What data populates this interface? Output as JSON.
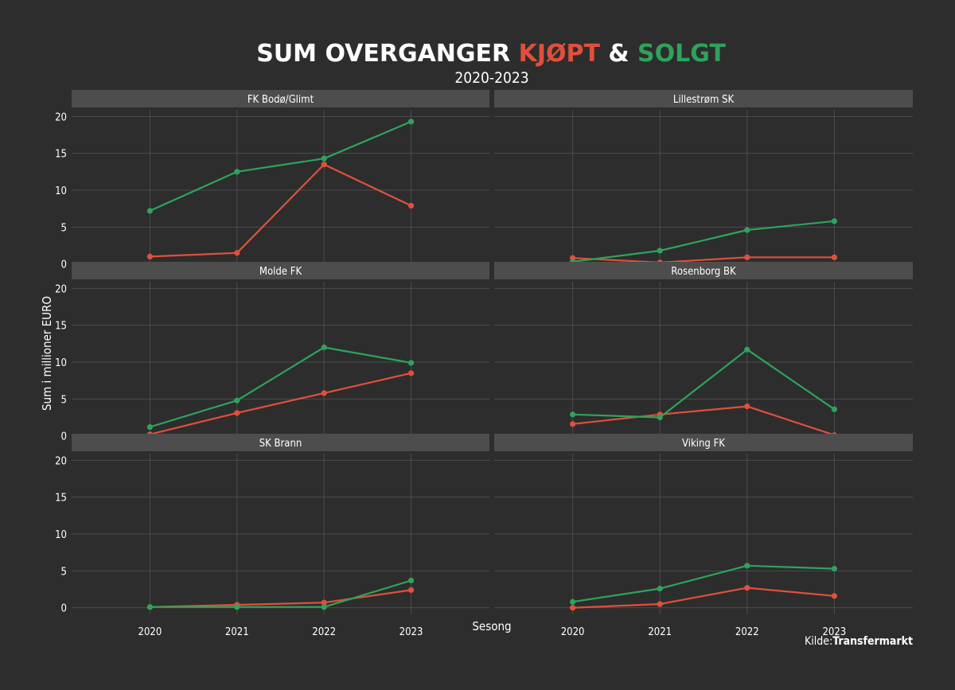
{
  "title": {
    "part1": "SUM OVERGANGER ",
    "part2": "KJØPT",
    "part3": " & ",
    "part4": "SOLGT",
    "subtitle": "2020-2023"
  },
  "caption": {
    "label": "Kilde:",
    "source": "Transfermarkt"
  },
  "colors": {
    "background": "#2d2d2d",
    "kjopt": "#e0503c",
    "solgt": "#2ea35b",
    "strip": "#4d4d4d",
    "grid": "#4c4c4c"
  },
  "chart_data": {
    "type": "line",
    "xlabel": "Sesong",
    "ylabel": "Sum i millioner EURO",
    "x": [
      2020,
      2021,
      2022,
      2023
    ],
    "x_tick_labels": [
      "2020",
      "2021",
      "2022",
      "2023"
    ],
    "y_ticks": [
      0,
      5,
      10,
      15,
      20
    ],
    "ylim": [
      0,
      20
    ],
    "facets": [
      {
        "team": "FK Bodø/Glimt",
        "series": [
          {
            "name": "Kjøpt",
            "values": [
              1.0,
              1.5,
              13.5,
              7.9
            ]
          },
          {
            "name": "Solgt",
            "values": [
              7.2,
              12.5,
              14.3,
              19.3
            ]
          }
        ]
      },
      {
        "team": "Lillestrøm SK",
        "series": [
          {
            "name": "Kjøpt",
            "values": [
              0.8,
              0.2,
              0.9,
              0.9
            ]
          },
          {
            "name": "Solgt",
            "values": [
              0.3,
              1.8,
              4.6,
              5.8
            ]
          }
        ]
      },
      {
        "team": "Molde FK",
        "series": [
          {
            "name": "Kjøpt",
            "values": [
              0.2,
              3.1,
              5.8,
              8.5
            ]
          },
          {
            "name": "Solgt",
            "values": [
              1.2,
              4.8,
              12.0,
              9.9
            ]
          }
        ]
      },
      {
        "team": "Rosenborg BK",
        "series": [
          {
            "name": "Kjøpt",
            "values": [
              1.6,
              2.9,
              4.0,
              0.1
            ]
          },
          {
            "name": "Solgt",
            "values": [
              2.9,
              2.5,
              11.7,
              3.6
            ]
          }
        ]
      },
      {
        "team": "SK Brann",
        "series": [
          {
            "name": "Kjøpt",
            "values": [
              0.1,
              0.4,
              0.7,
              2.4
            ]
          },
          {
            "name": "Solgt",
            "values": [
              0.1,
              0.1,
              0.1,
              3.7
            ]
          }
        ]
      },
      {
        "team": "Viking FK",
        "series": [
          {
            "name": "Kjøpt",
            "values": [
              0.0,
              0.5,
              2.7,
              1.6
            ]
          },
          {
            "name": "Solgt",
            "values": [
              0.8,
              2.6,
              5.7,
              5.3
            ]
          }
        ]
      }
    ]
  }
}
